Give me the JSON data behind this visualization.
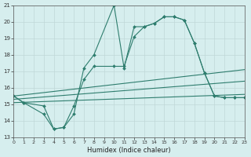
{
  "xlabel": "Humidex (Indice chaleur)",
  "line1_x": [
    0,
    1,
    3,
    4,
    5,
    6,
    7,
    8,
    10,
    11,
    12,
    13,
    14,
    15,
    16,
    17,
    18,
    19,
    20,
    21,
    22,
    23
  ],
  "line1_y": [
    15.5,
    15.1,
    14.4,
    13.5,
    13.6,
    14.4,
    17.2,
    18.0,
    21.0,
    17.2,
    19.7,
    19.7,
    19.9,
    20.3,
    20.3,
    20.1,
    18.7,
    16.9,
    15.5,
    15.4,
    15.4,
    15.4
  ],
  "line2_x": [
    0,
    1,
    3,
    4,
    5,
    6,
    7,
    8,
    10,
    11,
    12,
    13,
    14,
    15,
    16,
    17,
    18,
    19,
    20,
    21,
    22,
    23
  ],
  "line2_y": [
    15.5,
    15.1,
    14.9,
    13.5,
    13.6,
    14.9,
    16.5,
    17.3,
    17.3,
    17.3,
    19.1,
    19.7,
    19.9,
    20.3,
    20.3,
    20.1,
    18.7,
    16.9,
    15.5,
    15.4,
    15.4,
    15.4
  ],
  "trend1_x": [
    0,
    23
  ],
  "trend1_y": [
    15.5,
    17.1
  ],
  "trend2_x": [
    0,
    23
  ],
  "trend2_y": [
    15.3,
    16.4
  ],
  "trend3_x": [
    0,
    23
  ],
  "trend3_y": [
    15.1,
    15.6
  ],
  "color": "#2e7d6e",
  "bg_color": "#d6eeee",
  "grid_color": "#c0d8d8",
  "ylim": [
    13,
    21
  ],
  "xlim": [
    0,
    23
  ],
  "yticks": [
    13,
    14,
    15,
    16,
    17,
    18,
    19,
    20,
    21
  ],
  "xticks": [
    0,
    1,
    2,
    3,
    4,
    5,
    6,
    7,
    8,
    9,
    10,
    11,
    12,
    13,
    14,
    15,
    16,
    17,
    18,
    19,
    20,
    21,
    22,
    23
  ]
}
